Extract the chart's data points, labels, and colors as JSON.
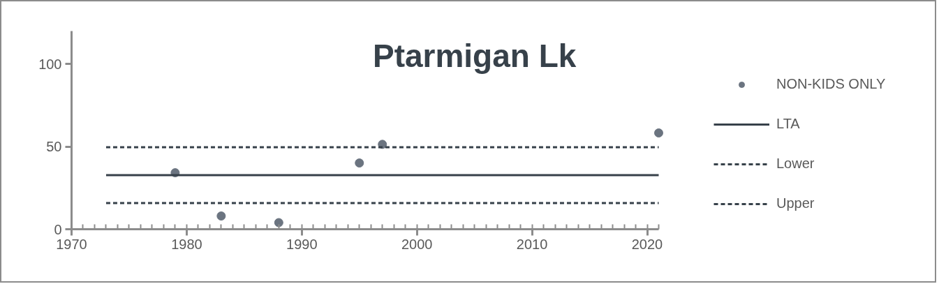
{
  "chart_data": {
    "type": "scatter",
    "title": "Ptarmigan Lk",
    "xlim": [
      1970,
      2021
    ],
    "xticks": [
      1970,
      1980,
      1990,
      2000,
      2010,
      2020
    ],
    "ylim": [
      0,
      120
    ],
    "yticks": [
      0,
      50,
      100
    ],
    "grid": false,
    "legend": "right",
    "series": [
      {
        "name": "NON-KIDS ONLY",
        "marker": "circle",
        "color": "#6b7480",
        "x": [
          1979,
          1983,
          1988,
          1995,
          1997,
          2021
        ],
        "values": [
          34.2,
          8.0,
          4.0,
          40.1,
          51.4,
          58.3
        ]
      },
      {
        "name": "LTA",
        "type": "line",
        "line_style": "solid",
        "color": "#37414a",
        "x": [
          1973,
          2021
        ],
        "values": [
          32.7,
          32.7
        ]
      },
      {
        "name": "Lower",
        "type": "line",
        "line_style": "dashed",
        "color": "#37414a",
        "x": [
          1973,
          2021
        ],
        "values": [
          15.8,
          15.8
        ]
      },
      {
        "name": "Upper",
        "type": "line",
        "line_style": "dashed",
        "color": "#37414a",
        "x": [
          1973,
          2021
        ],
        "values": [
          49.7,
          49.7
        ]
      }
    ]
  }
}
